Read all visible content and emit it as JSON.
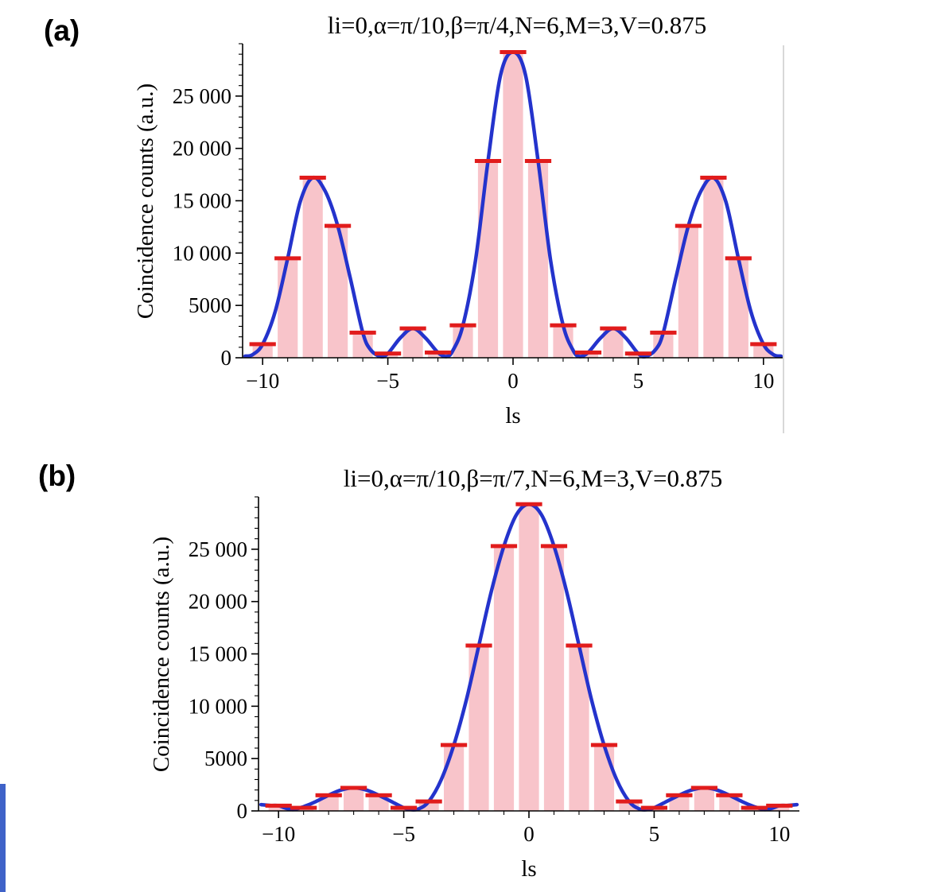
{
  "page": {
    "background": "#ffffff"
  },
  "panel_labels": {
    "a": "(a)",
    "b": "(b)"
  },
  "artifacts": {
    "left_edge_strip_color": "#3f62c8",
    "right_frame_line_color": "#d8d8d8"
  },
  "chart_data": [
    {
      "type": "bar",
      "overlay": "line",
      "panel": "(a)",
      "title": "li=0,α=π/10,β=π/4,N=6,M=3,V=0.875",
      "xlabel": "ls",
      "ylabel": "Coincidence counts (a.u.)",
      "xlim": [
        -10.8,
        10.8
      ],
      "ylim": [
        0,
        30000
      ],
      "grid": false,
      "legend": "none",
      "xticks": {
        "values": [
          -10,
          -5,
          0,
          5,
          10
        ],
        "labels": [
          "−10",
          "−5",
          "0",
          "5",
          "10"
        ]
      },
      "yticks": {
        "values": [
          0,
          5000,
          10000,
          15000,
          20000,
          25000
        ],
        "labels": [
          "0",
          "5000",
          "10 000",
          "15 000",
          "20 000",
          "25 000"
        ]
      },
      "bars": {
        "x": [
          -10,
          -9,
          -8,
          -7,
          -6,
          -5,
          -4,
          -3,
          -2,
          -1,
          0,
          1,
          2,
          3,
          4,
          5,
          6,
          7,
          8,
          9,
          10
        ],
        "values": [
          1300,
          9500,
          17200,
          12600,
          2400,
          400,
          2800,
          500,
          3100,
          18800,
          29200,
          18800,
          3100,
          500,
          2800,
          400,
          2400,
          12600,
          17200,
          9500,
          1300
        ]
      },
      "curve": {
        "x": [
          -10.7,
          -10.4,
          -10,
          -9.5,
          -9,
          -8.5,
          -8,
          -7.5,
          -7,
          -6.5,
          -6,
          -5.7,
          -5.3,
          -5,
          -4.5,
          -4,
          -3.5,
          -3,
          -2.65,
          -2.4,
          -2,
          -1.5,
          -1,
          -0.5,
          0,
          0.5,
          1,
          1.5,
          2,
          2.4,
          2.65,
          3,
          3.5,
          4,
          4.5,
          5,
          5.3,
          5.7,
          6,
          6.5,
          7,
          7.5,
          8,
          8.5,
          9,
          9.5,
          10,
          10.4,
          10.7
        ],
        "y": [
          150,
          300,
          1300,
          4400,
          9500,
          14900,
          17200,
          15900,
          12600,
          7600,
          2400,
          800,
          120,
          400,
          1900,
          2800,
          1900,
          500,
          120,
          700,
          3100,
          9300,
          18800,
          27000,
          29200,
          27000,
          18800,
          9300,
          3100,
          700,
          120,
          500,
          1900,
          2800,
          1900,
          400,
          120,
          800,
          2400,
          7600,
          12600,
          15900,
          17200,
          14900,
          9500,
          4400,
          1300,
          300,
          150
        ]
      },
      "colors": {
        "bar": "#f8c4ca",
        "cap": "#e11c1c",
        "curve": "#2433cc",
        "axis": "#000000"
      }
    },
    {
      "type": "bar",
      "overlay": "line",
      "panel": "(b)",
      "title": "li=0,α=π/10,β=π/7,N=6,M=3,V=0.875",
      "xlabel": "ls",
      "ylabel": "Coincidence counts (a.u.)",
      "xlim": [
        -10.8,
        10.8
      ],
      "ylim": [
        0,
        30000
      ],
      "grid": false,
      "legend": "none",
      "xticks": {
        "values": [
          -10,
          -5,
          0,
          5,
          10
        ],
        "labels": [
          "−10",
          "−5",
          "0",
          "5",
          "10"
        ]
      },
      "yticks": {
        "values": [
          0,
          5000,
          10000,
          15000,
          20000,
          25000
        ],
        "labels": [
          "0",
          "5000",
          "10 000",
          "15 000",
          "20 000",
          "25 000"
        ]
      },
      "bars": {
        "x": [
          -10,
          -9,
          -8,
          -7,
          -6,
          -5,
          -4,
          -3,
          -2,
          -1,
          0,
          1,
          2,
          3,
          4,
          5,
          6,
          7,
          8,
          9,
          10
        ],
        "values": [
          500,
          300,
          1500,
          2200,
          1500,
          300,
          900,
          6300,
          15800,
          25300,
          29300,
          25300,
          15800,
          6300,
          900,
          300,
          1500,
          2200,
          1500,
          300,
          500
        ]
      },
      "curve": {
        "x": [
          -10.7,
          -10.3,
          -10,
          -9.7,
          -9.4,
          -9,
          -8.5,
          -8,
          -7.5,
          -7,
          -6.5,
          -6,
          -5.5,
          -5,
          -4.7,
          -4.4,
          -4,
          -3.5,
          -3,
          -2.5,
          -2,
          -1.5,
          -1,
          -0.5,
          0,
          0.5,
          1,
          1.5,
          2,
          2.5,
          3,
          3.5,
          4,
          4.4,
          4.7,
          5,
          5.5,
          6,
          6.5,
          7,
          7.5,
          8,
          8.5,
          9,
          9.4,
          9.7,
          10,
          10.3,
          10.7
        ],
        "y": [
          600,
          520,
          500,
          250,
          130,
          400,
          900,
          1500,
          2000,
          2200,
          2000,
          1500,
          900,
          300,
          120,
          200,
          900,
          3000,
          6300,
          10600,
          15800,
          21000,
          25300,
          28300,
          29300,
          28300,
          25300,
          21000,
          15800,
          10600,
          6300,
          3000,
          900,
          200,
          120,
          300,
          900,
          1500,
          2000,
          2200,
          2000,
          1500,
          900,
          400,
          130,
          250,
          500,
          520,
          600
        ]
      },
      "colors": {
        "bar": "#f8c4ca",
        "cap": "#e11c1c",
        "curve": "#2433cc",
        "axis": "#000000"
      }
    }
  ]
}
